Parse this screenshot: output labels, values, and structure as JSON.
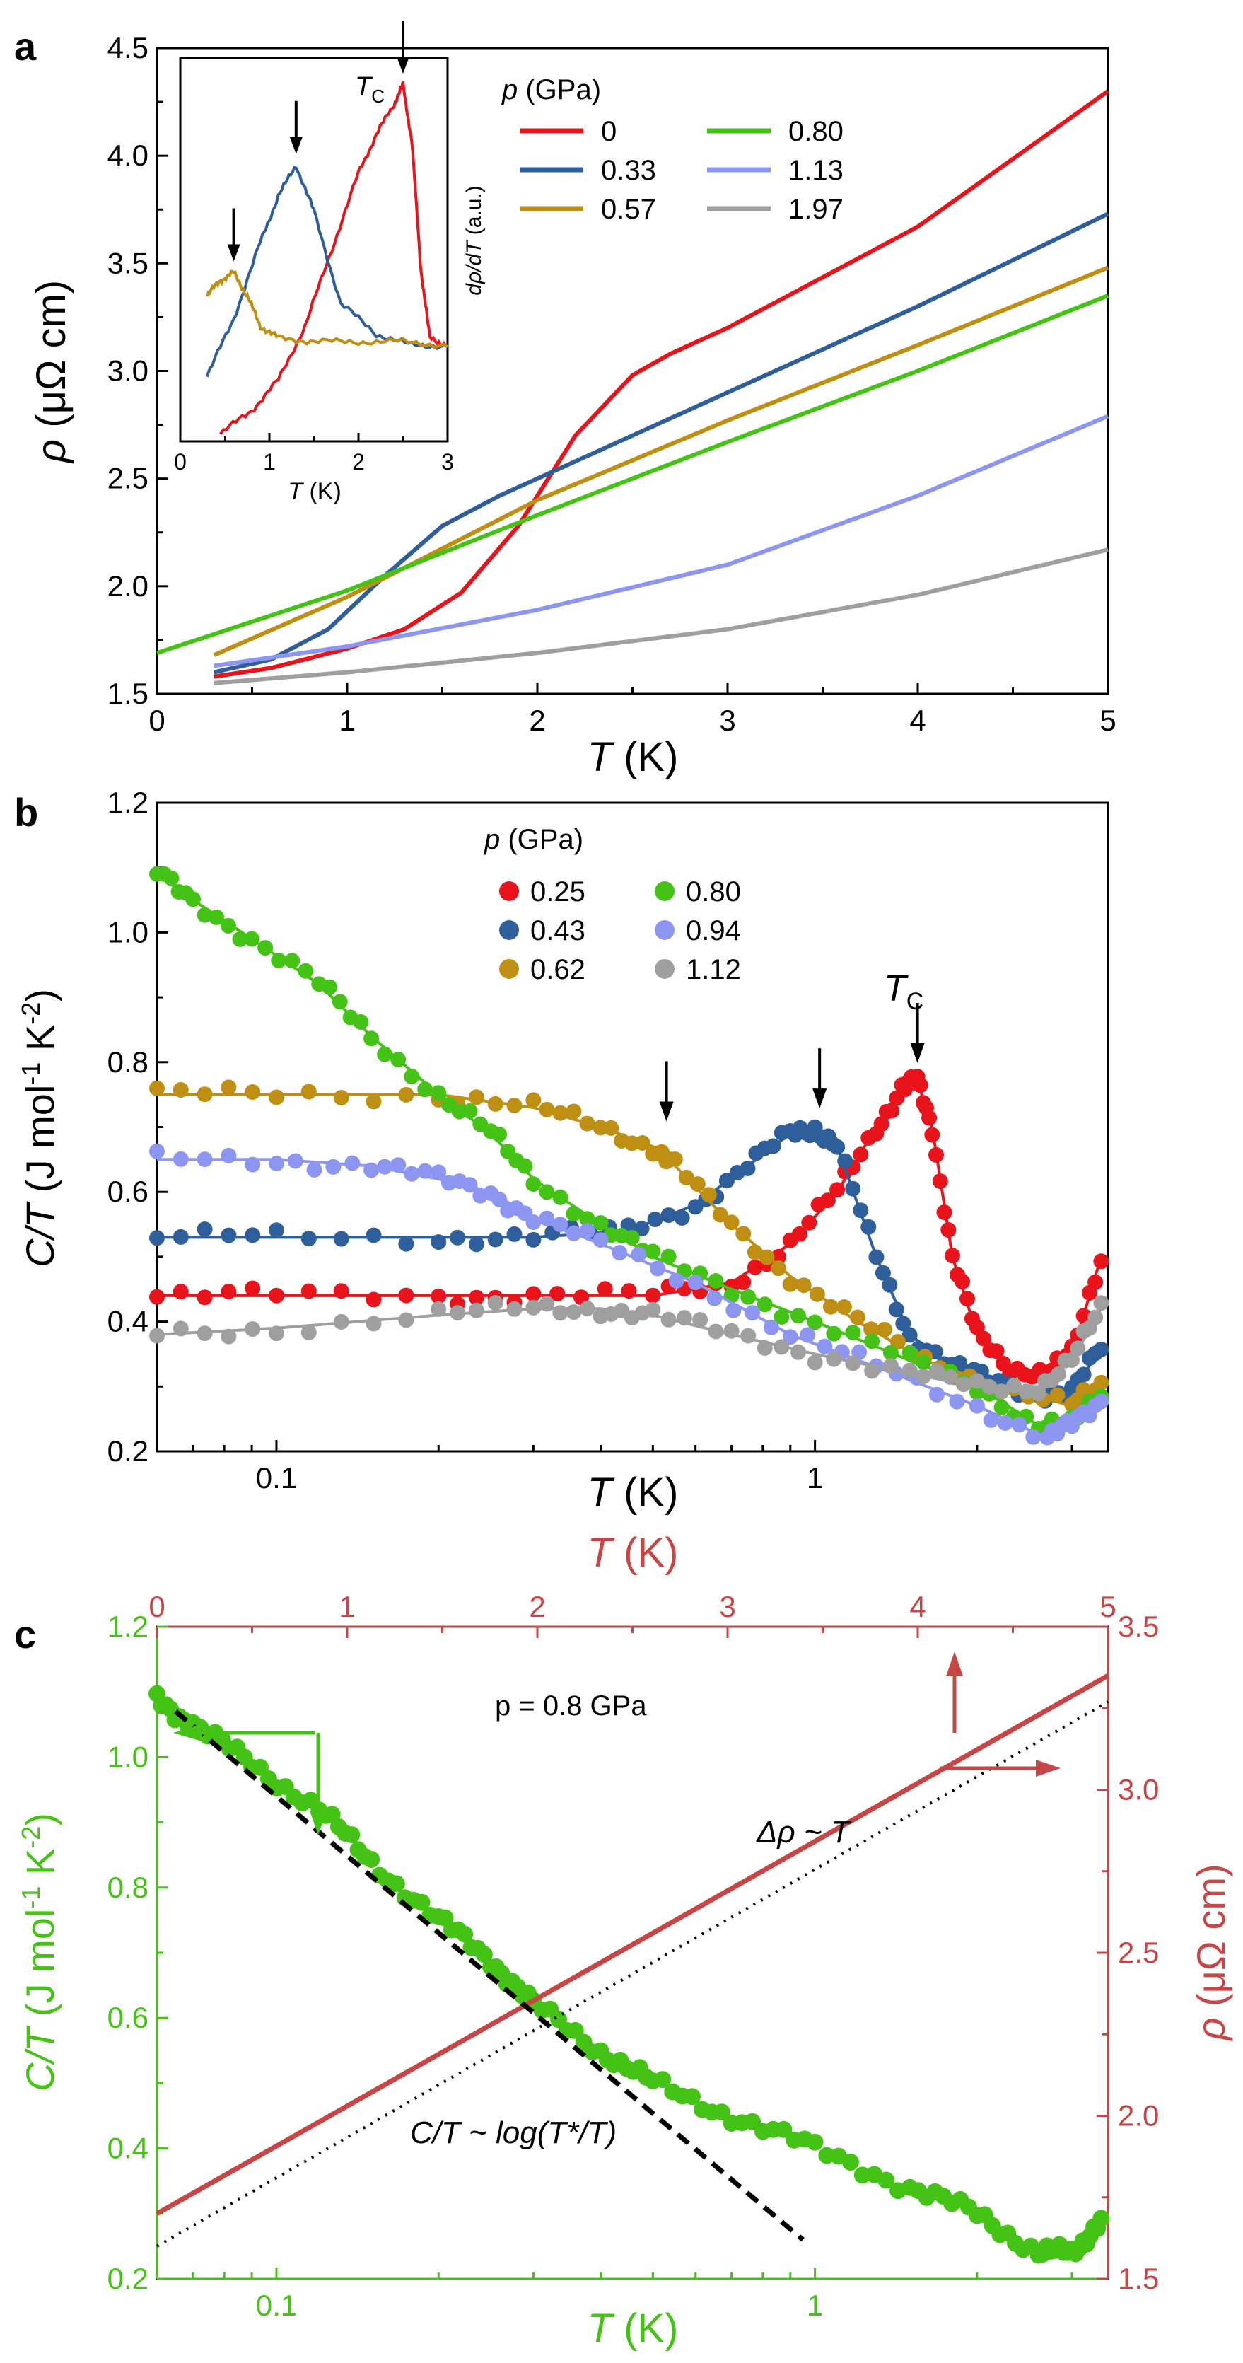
{
  "colors": {
    "p0": "#e8131b",
    "p033": "#2f5f9a",
    "p057": "#bf8f14",
    "p080": "#44c316",
    "p113": "#8c96f0",
    "p197": "#9f9f9f",
    "c_rho": "#c84545",
    "axis": "#000000"
  },
  "chart_data": [
    {
      "panel": "a",
      "type": "line",
      "xlabel": "T (K)",
      "ylabel": "ρ (μΩ cm)",
      "xlim": [
        0,
        5
      ],
      "ylim": [
        1.5,
        4.5
      ],
      "xticks": [
        "0",
        "1",
        "2",
        "3",
        "4",
        "5"
      ],
      "yticks": [
        "1.5",
        "2.0",
        "2.5",
        "3.0",
        "3.5",
        "4.0",
        "4.5"
      ],
      "legend_title": "p (GPa)",
      "series": [
        {
          "name": "0",
          "color_key": "p0",
          "x": [
            0.3,
            0.6,
            1.0,
            1.3,
            1.6,
            1.9,
            2.2,
            2.5,
            2.7,
            3.0,
            4.0,
            5.0
          ],
          "y": [
            1.58,
            1.62,
            1.71,
            1.8,
            1.97,
            2.28,
            2.7,
            2.98,
            3.08,
            3.2,
            3.67,
            4.3
          ]
        },
        {
          "name": "0.33",
          "color_key": "p033",
          "x": [
            0.3,
            0.6,
            0.9,
            1.2,
            1.5,
            1.8,
            2.0,
            2.5,
            3.0,
            4.0,
            5.0
          ],
          "y": [
            1.6,
            1.66,
            1.8,
            2.05,
            2.28,
            2.42,
            2.5,
            2.7,
            2.9,
            3.3,
            3.73
          ]
        },
        {
          "name": "0.57",
          "color_key": "p057",
          "x": [
            0.3,
            1.0,
            2.0,
            3.0,
            4.0,
            5.0
          ],
          "y": [
            1.68,
            1.95,
            2.4,
            2.77,
            3.12,
            3.48
          ]
        },
        {
          "name": "0.80",
          "color_key": "p080",
          "x": [
            0.0,
            1.0,
            2.0,
            3.0,
            4.0,
            5.0
          ],
          "y": [
            1.69,
            1.98,
            2.33,
            2.67,
            3.0,
            3.35
          ]
        },
        {
          "name": "1.13",
          "color_key": "p113",
          "x": [
            0.3,
            1.0,
            2.0,
            3.0,
            4.0,
            5.0
          ],
          "y": [
            1.63,
            1.72,
            1.89,
            2.1,
            2.42,
            2.79
          ]
        },
        {
          "name": "1.97",
          "color_key": "p197",
          "x": [
            0.3,
            1.0,
            2.0,
            3.0,
            4.0,
            5.0
          ],
          "y": [
            1.55,
            1.6,
            1.69,
            1.8,
            1.96,
            2.17
          ]
        }
      ],
      "annotations": {
        "panel_label": "a"
      },
      "inset": {
        "xlabel": "T (K)",
        "ylabel": "dρ/dT (a.u.)",
        "xlim": [
          0,
          3
        ],
        "xticks": [
          "0",
          "1",
          "2",
          "3"
        ],
        "ylim": [
          0,
          1
        ],
        "tc_label": "T",
        "tc_sub": "C",
        "series": [
          {
            "name": "0",
            "color_key": "p0",
            "x": [
              0.45,
              0.8,
              1.1,
              1.4,
              1.7,
              2.0,
              2.2,
              2.4,
              2.5,
              2.6,
              2.7,
              2.8,
              3.0
            ],
            "y": [
              0.02,
              0.08,
              0.16,
              0.3,
              0.5,
              0.7,
              0.8,
              0.88,
              0.93,
              0.78,
              0.45,
              0.27,
              0.25
            ]
          },
          {
            "name": "0.33",
            "color_key": "p033",
            "x": [
              0.3,
              0.6,
              0.9,
              1.1,
              1.3,
              1.5,
              1.8,
              2.2,
              2.6,
              3.0
            ],
            "y": [
              0.17,
              0.32,
              0.52,
              0.64,
              0.72,
              0.6,
              0.36,
              0.28,
              0.25,
              0.25
            ]
          },
          {
            "name": "0.57",
            "color_key": "p057",
            "x": [
              0.3,
              0.45,
              0.6,
              0.75,
              0.9,
              1.1,
              1.5,
              2.0,
              2.5,
              3.0
            ],
            "y": [
              0.38,
              0.42,
              0.44,
              0.38,
              0.3,
              0.27,
              0.26,
              0.26,
              0.26,
              0.25
            ]
          }
        ],
        "arrows_x": [
          0.6,
          1.3,
          2.5
        ]
      }
    },
    {
      "panel": "b",
      "type": "scatter",
      "xscale": "log",
      "xlabel": "T (K)",
      "ylabel": "C/T (J mol-1 K-2)",
      "xlim": [
        0.06,
        3.5
      ],
      "ylim": [
        0.2,
        1.2
      ],
      "xticks": [
        "0.1",
        "1"
      ],
      "yticks": [
        "0.2",
        "0.4",
        "0.6",
        "0.8",
        "1.0",
        "1.2"
      ],
      "legend_title": "p (GPa)",
      "tc_label": "T",
      "tc_sub": "C",
      "series": [
        {
          "name": "0.25",
          "color_key": "p0",
          "x": [
            0.06,
            0.1,
            0.2,
            0.3,
            0.5,
            0.7,
            0.9,
            1.1,
            1.3,
            1.45,
            1.55,
            1.65,
            1.8,
            2.0,
            2.3,
            2.7,
            3.0,
            3.4
          ],
          "y": [
            0.44,
            0.44,
            0.44,
            0.44,
            0.44,
            0.46,
            0.52,
            0.6,
            0.7,
            0.76,
            0.77,
            0.7,
            0.5,
            0.38,
            0.33,
            0.32,
            0.35,
            0.5
          ]
        },
        {
          "name": "0.43",
          "color_key": "p033",
          "x": [
            0.06,
            0.1,
            0.2,
            0.3,
            0.45,
            0.6,
            0.75,
            0.9,
            1.0,
            1.1,
            1.3,
            1.5,
            1.8,
            2.1,
            2.6,
            3.0,
            3.4
          ],
          "y": [
            0.53,
            0.53,
            0.53,
            0.53,
            0.54,
            0.58,
            0.64,
            0.69,
            0.7,
            0.67,
            0.5,
            0.38,
            0.33,
            0.31,
            0.29,
            0.29,
            0.36
          ]
        },
        {
          "name": "0.62",
          "color_key": "p057",
          "x": [
            0.06,
            0.1,
            0.2,
            0.3,
            0.4,
            0.5,
            0.55,
            0.7,
            0.9,
            1.2,
            1.6,
            2.2,
            3.0,
            3.4
          ],
          "y": [
            0.75,
            0.75,
            0.75,
            0.73,
            0.7,
            0.67,
            0.64,
            0.55,
            0.47,
            0.4,
            0.34,
            0.3,
            0.27,
            0.3
          ]
        },
        {
          "name": "0.80",
          "color_key": "p080",
          "x": [
            0.06,
            0.07,
            0.09,
            0.12,
            0.15,
            0.2,
            0.25,
            0.3,
            0.4,
            0.5,
            0.7,
            1.0,
            1.5,
            2.0,
            2.6,
            3.0,
            3.4
          ],
          "y": [
            1.09,
            1.05,
            0.99,
            0.92,
            0.84,
            0.75,
            0.69,
            0.62,
            0.55,
            0.5,
            0.45,
            0.4,
            0.34,
            0.3,
            0.24,
            0.24,
            0.29
          ]
        },
        {
          "name": "0.94",
          "color_key": "p113",
          "x": [
            0.06,
            0.1,
            0.15,
            0.2,
            0.25,
            0.3,
            0.4,
            0.6,
            0.9,
            1.3,
            2.0,
            2.7,
            3.0,
            3.4
          ],
          "y": [
            0.65,
            0.65,
            0.64,
            0.62,
            0.6,
            0.56,
            0.52,
            0.46,
            0.38,
            0.33,
            0.27,
            0.22,
            0.24,
            0.28
          ]
        },
        {
          "name": "1.12",
          "color_key": "p197",
          "x": [
            0.06,
            0.1,
            0.2,
            0.3,
            0.4,
            0.5,
            0.7,
            1.0,
            1.5,
            2.0,
            2.6,
            3.0,
            3.4
          ],
          "y": [
            0.38,
            0.39,
            0.41,
            0.42,
            0.42,
            0.41,
            0.38,
            0.35,
            0.32,
            0.3,
            0.3,
            0.34,
            0.42
          ]
        }
      ],
      "arrows_x": [
        0.53,
        1.02,
        1.55
      ],
      "annotations": {
        "panel_label": "b"
      }
    },
    {
      "panel": "c",
      "type": "scatter",
      "xscale": "log",
      "xlabel": "T (K)",
      "ylabel": "C/T (J mol-1 K-2)",
      "xlim": [
        0.06,
        3.5
      ],
      "ylim": [
        0.2,
        1.2
      ],
      "xticks": [
        "0.1",
        "1"
      ],
      "yticks": [
        "0.2",
        "0.4",
        "0.6",
        "0.8",
        "1.0",
        "1.2"
      ],
      "top_xlabel": "T (K)",
      "top_xlim": [
        0,
        5
      ],
      "top_xticks": [
        "0",
        "1",
        "2",
        "3",
        "4",
        "5"
      ],
      "right_ylabel": "ρ (μΩ cm)",
      "right_ylim": [
        1.5,
        3.5
      ],
      "right_yticks": [
        "1.5",
        "2.0",
        "2.5",
        "3.0",
        "3.5"
      ],
      "pressure_label": "p = 0.8 GPa",
      "fit_label_c": "C/T ~ log(T*/T)",
      "fit_label_rho": "Δρ ~ T",
      "series": [
        {
          "name": "C/T 0.80 GPa",
          "color_key": "p080",
          "x": [
            0.06,
            0.07,
            0.09,
            0.12,
            0.15,
            0.2,
            0.25,
            0.3,
            0.4,
            0.5,
            0.7,
            1.0,
            1.5,
            2.0,
            2.6,
            3.0,
            3.4
          ],
          "y": [
            1.09,
            1.05,
            0.99,
            0.92,
            0.84,
            0.75,
            0.69,
            0.62,
            0.55,
            0.5,
            0.45,
            0.4,
            0.34,
            0.3,
            0.24,
            0.24,
            0.29
          ]
        },
        {
          "name": "rho 0.8 GPa",
          "color_key": "c_rho",
          "x_top": [
            0.0,
            5.0
          ],
          "y_right": [
            1.7,
            3.35
          ]
        },
        {
          "name": "log fit",
          "x": [
            0.065,
            0.95
          ],
          "y": [
            1.07,
            0.26
          ]
        },
        {
          "name": "linear fit",
          "x_top": [
            0.0,
            5.0
          ],
          "y_right": [
            1.6,
            3.27
          ]
        }
      ],
      "annotations": {
        "panel_label": "c"
      }
    }
  ]
}
